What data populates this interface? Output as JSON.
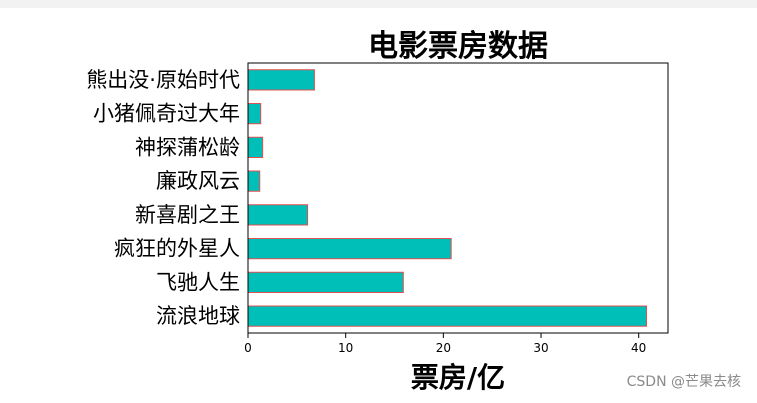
{
  "page": {
    "watermark": "CSDN @芒果去核"
  },
  "colors": {
    "bar_fill": "#00BFB8",
    "bar_edge": "#E05050",
    "axis": "#000000",
    "text": "#000000"
  },
  "chart_data": {
    "type": "bar",
    "orientation": "horizontal",
    "title": "电影票房数据",
    "xlabel": "票房/亿",
    "ylabel": "",
    "categories": [
      "熊出没·原始时代",
      "小猪佩奇过大年",
      "神探蒲松龄",
      "廉政风云",
      "新喜剧之王",
      "疯狂的外星人",
      "飞驰人生",
      "流浪地球"
    ],
    "values": [
      6.8,
      1.3,
      1.5,
      1.2,
      6.1,
      20.8,
      15.9,
      40.8
    ],
    "xlim": [
      0,
      43
    ],
    "xticks": [
      0,
      10,
      20,
      30,
      40
    ],
    "grid": false,
    "legend": "none"
  }
}
